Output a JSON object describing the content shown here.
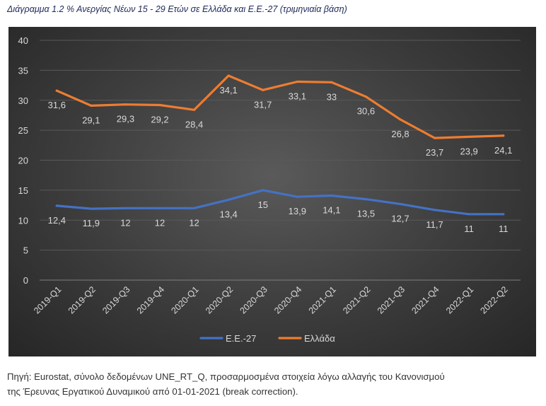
{
  "caption": "Διάγραμμα 1.2 % Ανεργίας Νέων 15 - 29 Ετών σε Ελλάδα και Ε.Ε.-27 (τριμηνιαία βάση)",
  "source": {
    "line1": "Πηγή: Eurostat, σύνολο δεδομένων UNE_RT_Q, προσαρμοσμένα στοιχεία λόγω αλλαγής του Κανονισμού",
    "line2": "της Έρευνας Εργατικού Δυναμικού από 01-01-2021 (break correction)."
  },
  "colors": {
    "eu": "#4472c4",
    "greece": "#ed7d31",
    "text": "#d9d9d9",
    "grid": "#595959"
  },
  "chart_data": {
    "type": "line",
    "title": "",
    "xlabel": "",
    "ylabel": "",
    "categories": [
      "2019-Q1",
      "2019-Q2",
      "2019-Q3",
      "2019-Q4",
      "2020-Q1",
      "2020-Q2",
      "2020-Q3",
      "2020-Q4",
      "2021-Q1",
      "2021-Q2",
      "2021-Q3",
      "2021-Q4",
      "2022-Q1",
      "2022-Q2"
    ],
    "ylim": [
      0,
      40
    ],
    "yticks": [
      0,
      5,
      10,
      15,
      20,
      25,
      30,
      35,
      40
    ],
    "grid": true,
    "legend_position": "bottom",
    "series": [
      {
        "name": "Ε.Ε.-27",
        "values": [
          12.4,
          11.9,
          12,
          12,
          12,
          13.4,
          15,
          13.9,
          14.1,
          13.5,
          12.7,
          11.7,
          11,
          11
        ],
        "labels": [
          "12,4",
          "11,9",
          "12",
          "12",
          "12",
          "13,4",
          "15",
          "13,9",
          "14,1",
          "13,5",
          "12,7",
          "11,7",
          "11",
          "11"
        ]
      },
      {
        "name": "Ελλάδα",
        "values": [
          31.6,
          29.1,
          29.3,
          29.2,
          28.4,
          34.1,
          31.7,
          33.1,
          33,
          30.6,
          26.8,
          23.7,
          23.9,
          24.1
        ],
        "labels": [
          "31,6",
          "29,1",
          "29,3",
          "29,2",
          "28,4",
          "34,1",
          "31,7",
          "33,1",
          "33",
          "30,6",
          "26,8",
          "23,7",
          "23,9",
          "24,1"
        ]
      }
    ]
  }
}
